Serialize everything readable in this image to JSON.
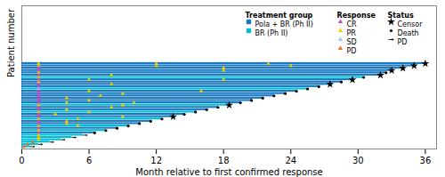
{
  "chart_data": {
    "type": "swimmer",
    "orientation": "horizontal",
    "xlabel": "Month relative to first confirmed response",
    "ylabel": "Patient number",
    "xlim": [
      0,
      37
    ],
    "xticks": [
      0,
      6,
      12,
      18,
      24,
      30,
      36
    ],
    "ylim": [
      0,
      62
    ],
    "yticks": [],
    "tick_labels": "x",
    "legend": "upper right",
    "groups": {
      "title": "Treatment group",
      "marker": "square",
      "items": [
        {
          "name": "Pola + BR (Ph II)",
          "color": "#1a7abf"
        },
        {
          "name": "BR (Ph II)",
          "color": "#00bcd4"
        }
      ]
    },
    "responses": {
      "title": "Response",
      "marker": "triangle",
      "items": [
        {
          "name": "CR",
          "color": "#cc44cc"
        },
        {
          "name": "PR",
          "color": "#f5d000"
        },
        {
          "name": "SD",
          "color": "#a0cce0"
        },
        {
          "name": "PD",
          "color": "#f07020"
        }
      ]
    },
    "statuses": {
      "title": "Status",
      "items": [
        {
          "name": "Censor",
          "marker": "star"
        },
        {
          "name": "Death",
          "marker": "circle"
        },
        {
          "name": "PD",
          "marker": "arrow"
        }
      ]
    },
    "patients": [
      {
        "group": "Pola + BR (Ph II)",
        "value": 36.0,
        "responses": [
          {
            "type": "PR",
            "x": 1.5
          },
          {
            "type": "PR",
            "x": 12
          },
          {
            "type": "PR",
            "x": 22
          }
        ],
        "status": "Censor"
      },
      {
        "group": "Pola + BR (Ph II)",
        "value": 35.0,
        "responses": [
          {
            "type": "PR",
            "x": 1.5
          },
          {
            "type": "PR",
            "x": 12
          },
          {
            "type": "PR",
            "x": 24
          }
        ],
        "status": "Censor"
      },
      {
        "group": "Pola + BR (Ph II)",
        "value": 34.0,
        "responses": [
          {
            "type": "CR",
            "x": 1.5
          },
          {
            "type": "PR",
            "x": 18
          }
        ],
        "status": "Censor"
      },
      {
        "group": "Pola + BR (Ph II)",
        "value": 33.0,
        "responses": [
          {
            "type": "CR",
            "x": 1.5
          },
          {
            "type": "PR",
            "x": 18
          }
        ],
        "status": "Censor"
      },
      {
        "group": "Pola + BR (Ph II)",
        "value": 32.5,
        "responses": [
          {
            "type": "PR",
            "x": 1.5
          }
        ],
        "status": "Death"
      },
      {
        "group": "Pola + BR (Ph II)",
        "value": 32.0,
        "responses": [
          {
            "type": "CR",
            "x": 1.5
          },
          {
            "type": "PR",
            "x": 8
          }
        ],
        "status": "Censor"
      },
      {
        "group": "BR (Ph II)",
        "value": 30.5,
        "responses": [
          {
            "type": "PR",
            "x": 1.5
          }
        ],
        "status": "Death"
      },
      {
        "group": "Pola + BR (Ph II)",
        "value": 29.5,
        "responses": [
          {
            "type": "CR",
            "x": 1.5
          },
          {
            "type": "PR",
            "x": 6
          },
          {
            "type": "PR",
            "x": 18
          }
        ],
        "status": "Censor"
      },
      {
        "group": "Pola + BR (Ph II)",
        "value": 28.5,
        "responses": [
          {
            "type": "PR",
            "x": 1.5
          }
        ],
        "status": "Death"
      },
      {
        "group": "Pola + BR (Ph II)",
        "value": 27.5,
        "responses": [
          {
            "type": "CR",
            "x": 1.5
          },
          {
            "type": "PR",
            "x": 8
          }
        ],
        "status": "Censor"
      },
      {
        "group": "Pola + BR (Ph II)",
        "value": 26.5,
        "responses": [
          {
            "type": "CR",
            "x": 1.5
          }
        ],
        "status": "Death"
      },
      {
        "group": "BR (Ph II)",
        "value": 25.5,
        "responses": [
          {
            "type": "SD",
            "x": 1.5
          }
        ],
        "status": "Death"
      },
      {
        "group": "Pola + BR (Ph II)",
        "value": 24.5,
        "responses": [
          {
            "type": "CR",
            "x": 1.5
          },
          {
            "type": "PR",
            "x": 6
          },
          {
            "type": "PR",
            "x": 16
          }
        ],
        "status": "Death"
      },
      {
        "group": "Pola + BR (Ph II)",
        "value": 23.5,
        "responses": [
          {
            "type": "CR",
            "x": 1.5
          },
          {
            "type": "PR",
            "x": 9
          }
        ],
        "status": "Death"
      },
      {
        "group": "Pola + BR (Ph II)",
        "value": 22.5,
        "responses": [
          {
            "type": "CR",
            "x": 1.5
          },
          {
            "type": "PR",
            "x": 7
          }
        ],
        "status": "Death"
      },
      {
        "group": "Pola + BR (Ph II)",
        "value": 21.5,
        "responses": [
          {
            "type": "CR",
            "x": 1.5
          },
          {
            "type": "PR",
            "x": 4
          }
        ],
        "status": "Death"
      },
      {
        "group": "Pola + BR (Ph II)",
        "value": 20.5,
        "responses": [
          {
            "type": "CR",
            "x": 1.5
          },
          {
            "type": "PR",
            "x": 6
          }
        ],
        "status": "Death"
      },
      {
        "group": "Pola + BR (Ph II)",
        "value": 19.5,
        "responses": [
          {
            "type": "CR",
            "x": 1.5
          },
          {
            "type": "PR",
            "x": 4
          },
          {
            "type": "PR",
            "x": 10
          }
        ],
        "status": "Death"
      },
      {
        "group": "BR (Ph II)",
        "value": 18.5,
        "responses": [
          {
            "type": "PR",
            "x": 1.5
          },
          {
            "type": "PR",
            "x": 9
          }
        ],
        "status": "Censor"
      },
      {
        "group": "Pola + BR (Ph II)",
        "value": 17.5,
        "responses": [
          {
            "type": "CR",
            "x": 1.5
          },
          {
            "type": "PR",
            "x": 8
          }
        ],
        "status": "Death"
      },
      {
        "group": "Pola + BR (Ph II)",
        "value": 16.5,
        "responses": [
          {
            "type": "CR",
            "x": 1.5
          },
          {
            "type": "PR",
            "x": 4
          }
        ],
        "status": "Death"
      },
      {
        "group": "BR (Ph II)",
        "value": 15.5,
        "responses": [
          {
            "type": "PR",
            "x": 1.5
          },
          {
            "type": "PR",
            "x": 6
          }
        ],
        "status": "Death"
      },
      {
        "group": "Pola + BR (Ph II)",
        "value": 14.5,
        "responses": [
          {
            "type": "CR",
            "x": 1.5
          },
          {
            "type": "PR",
            "x": 3
          }
        ],
        "status": "Death"
      },
      {
        "group": "Pola + BR (Ph II)",
        "value": 13.5,
        "responses": [
          {
            "type": "CR",
            "x": 1.5
          },
          {
            "type": "PR",
            "x": 9
          }
        ],
        "status": "Censor"
      },
      {
        "group": "BR (Ph II)",
        "value": 12.5,
        "responses": [
          {
            "type": "PR",
            "x": 1.5
          },
          {
            "type": "PR",
            "x": 5
          }
        ],
        "status": "Death"
      },
      {
        "group": "Pola + BR (Ph II)",
        "value": 11.5,
        "responses": [
          {
            "type": "CR",
            "x": 1.5
          },
          {
            "type": "PR",
            "x": 4
          }
        ],
        "status": "Death"
      },
      {
        "group": "Pola + BR (Ph II)",
        "value": 10.5,
        "responses": [
          {
            "type": "CR",
            "x": 1.5
          },
          {
            "type": "PR",
            "x": 4
          }
        ],
        "status": "Death"
      },
      {
        "group": "BR (Ph II)",
        "value": 9.5,
        "responses": [
          {
            "type": "PR",
            "x": 1.5
          },
          {
            "type": "PR",
            "x": 5
          }
        ],
        "status": "Death"
      },
      {
        "group": "Pola + BR (Ph II)",
        "value": 8.5,
        "responses": [
          {
            "type": "CR",
            "x": 1.5
          }
        ],
        "status": "Death"
      },
      {
        "group": "BR (Ph II)",
        "value": 7.5,
        "responses": [
          {
            "type": "PR",
            "x": 1.5
          }
        ],
        "status": "Death"
      },
      {
        "group": "Pola + BR (Ph II)",
        "value": 6.5,
        "responses": [
          {
            "type": "CR",
            "x": 1.5
          }
        ],
        "status": "Death"
      },
      {
        "group": "BR (Ph II)",
        "value": 5.5,
        "responses": [
          {
            "type": "PR",
            "x": 1.5
          }
        ],
        "status": "PD"
      },
      {
        "group": "BR (Ph II)",
        "value": 4.5,
        "responses": [
          {
            "type": "PR",
            "x": 1.5
          }
        ],
        "status": "PD"
      },
      {
        "group": "BR (Ph II)",
        "value": 3.5,
        "responses": [
          {
            "type": "PR",
            "x": 1.5
          }
        ],
        "status": "PD"
      },
      {
        "group": "BR (Ph II)",
        "value": 2.5,
        "responses": [
          {
            "type": "PD",
            "x": 1.0
          }
        ],
        "status": "PD"
      },
      {
        "group": "BR (Ph II)",
        "value": 1.5,
        "responses": [
          {
            "type": "PD",
            "x": 0.5
          }
        ],
        "status": "PD"
      },
      {
        "group": "BR (Ph II)",
        "value": 0.8,
        "responses": [
          {
            "type": "PD",
            "x": 0.2
          }
        ],
        "status": "PD"
      }
    ]
  }
}
